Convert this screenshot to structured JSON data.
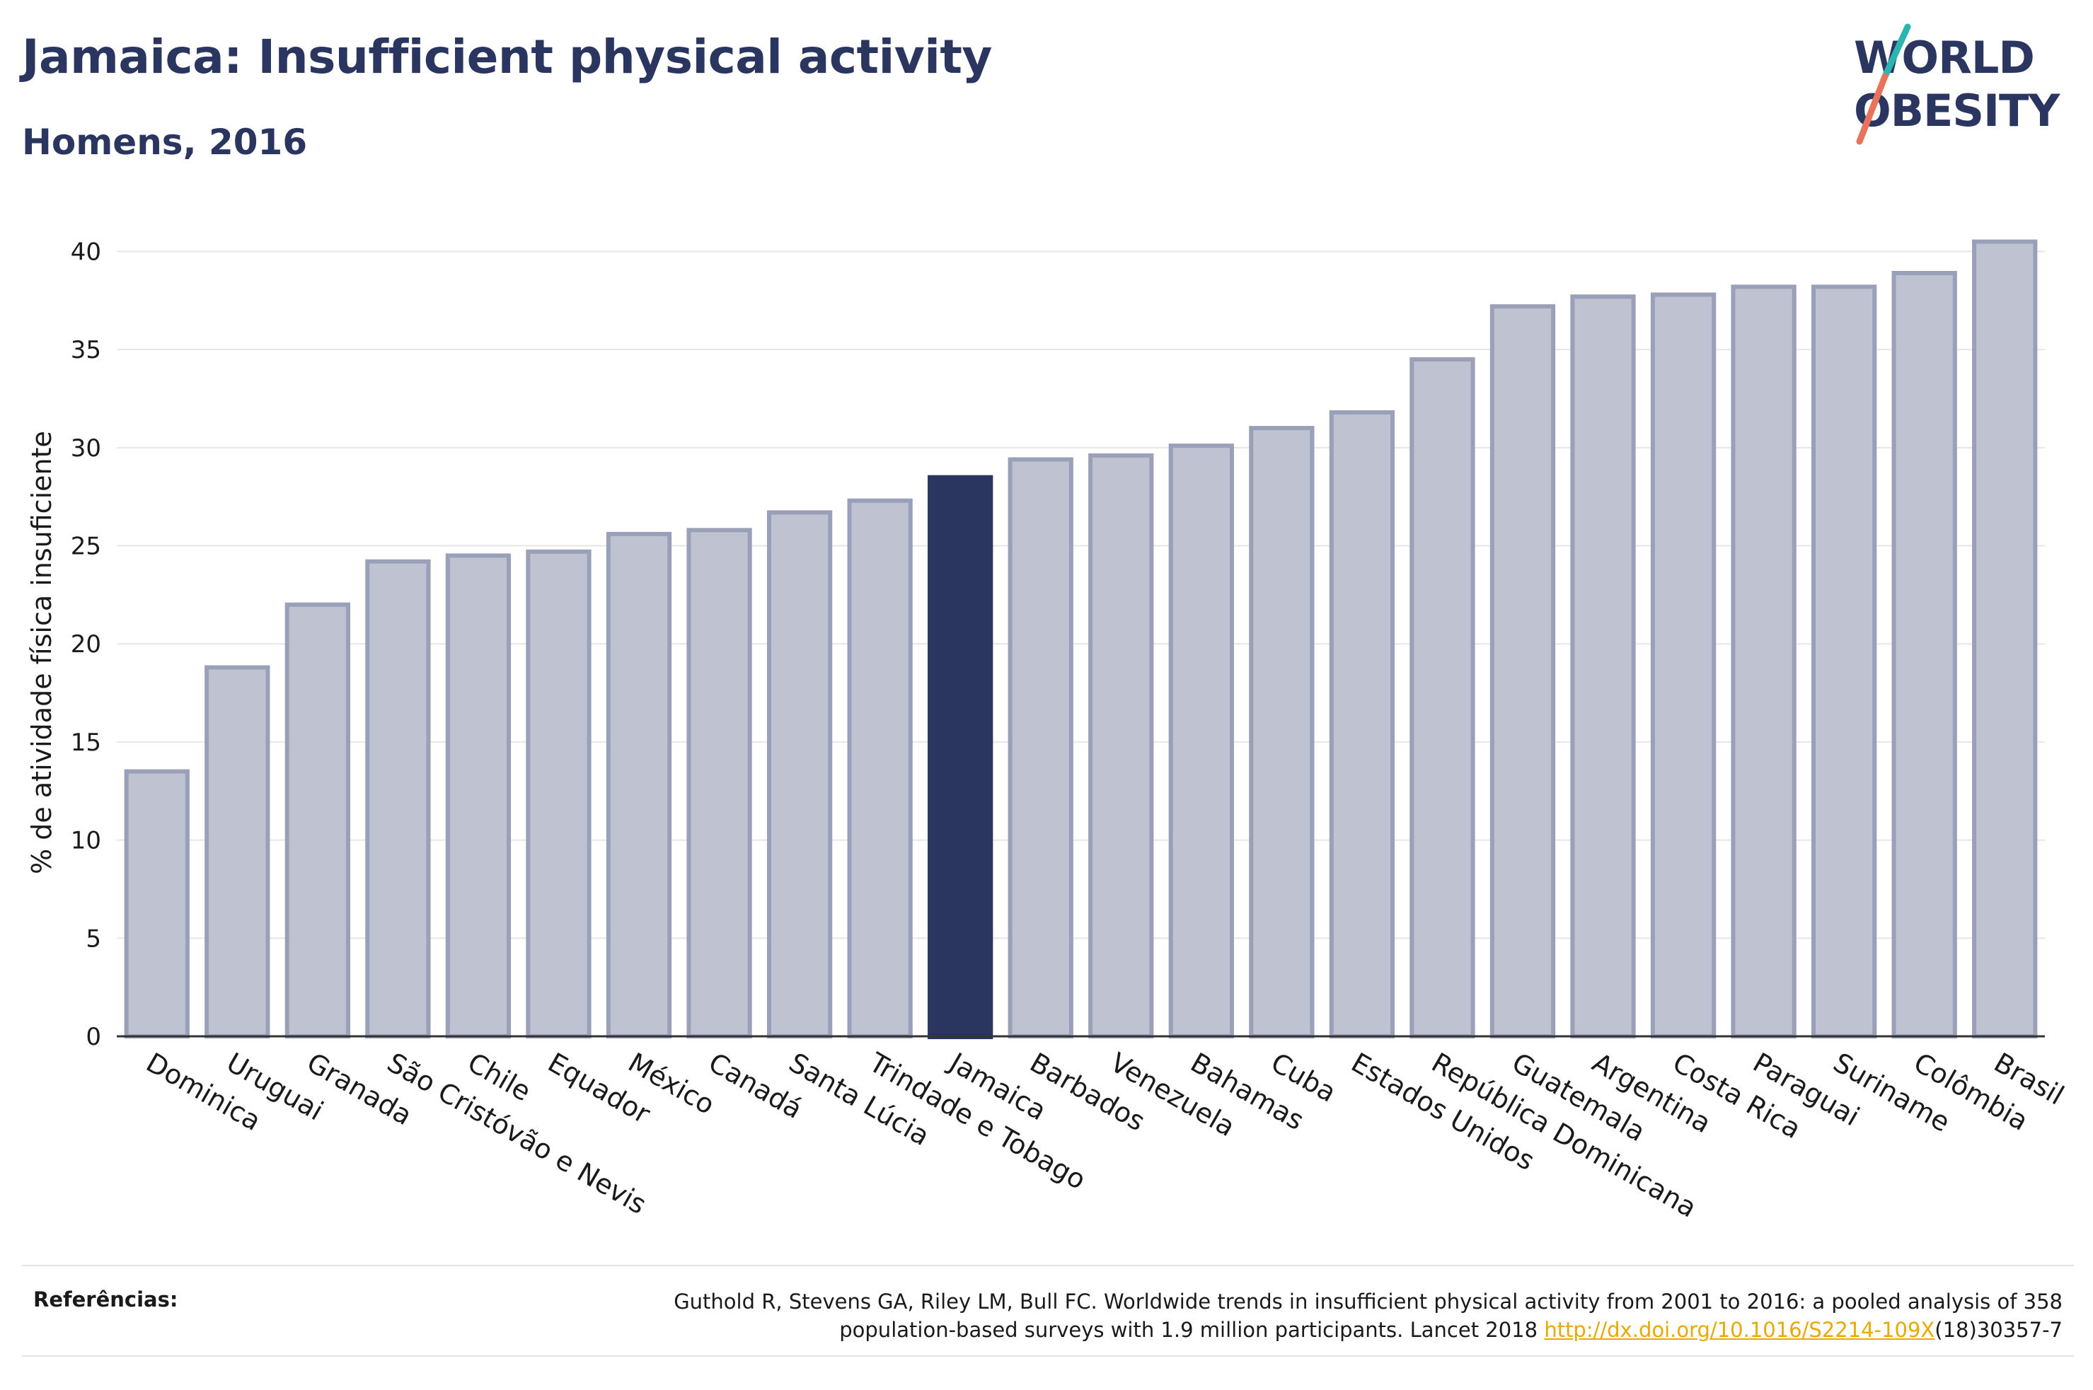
{
  "header": {
    "title": "Jamaica: Insufficient physical activity",
    "subtitle": "Homens, 2016"
  },
  "logo": {
    "line1": "WORLD",
    "line2": "OBESITY",
    "colors": {
      "text": "#2a3560",
      "stroke_teal": "#2bb5b0",
      "stroke_coral": "#e8735a"
    }
  },
  "colors": {
    "bar_default": "#bfc2d0",
    "bar_default_border": "#9aa0b8",
    "bar_highlight": "#2a3560",
    "grid": "#e6e6e6",
    "axis": "#333333"
  },
  "chart_data": {
    "type": "bar",
    "ylabel": "% de atividade física insuficiente",
    "xlabel": "",
    "ylim": [
      0,
      42
    ],
    "yticks": [
      0,
      5,
      10,
      15,
      20,
      25,
      30,
      35,
      40
    ],
    "grid": true,
    "highlight": "Jamaica",
    "categories": [
      "Dominica",
      "Uruguai",
      "Granada",
      "São Cristóvão e Nevis",
      "Chile",
      "Equador",
      "México",
      "Canadá",
      "Santa Lúcia",
      "Trindade e Tobago",
      "Jamaica",
      "Barbados",
      "Venezuela",
      "Bahamas",
      "Cuba",
      "Estados Unidos",
      "República Dominicana",
      "Guatemala",
      "Argentina",
      "Costa Rica",
      "Paraguai",
      "Suriname",
      "Colômbia",
      "Brasil"
    ],
    "values": [
      13.5,
      18.8,
      22.0,
      24.2,
      24.5,
      24.7,
      25.6,
      25.8,
      26.7,
      27.3,
      28.6,
      29.4,
      29.6,
      30.1,
      31.0,
      31.8,
      34.5,
      37.2,
      37.7,
      37.8,
      38.2,
      38.2,
      38.9,
      40.5
    ]
  },
  "footer": {
    "label": "Referências:",
    "citation_line1": "Guthold R, Stevens GA, Riley LM, Bull FC. Worldwide trends in insufficient physical activity from 2001 to 2016: a pooled analysis of 358",
    "citation_line2_pre": "population-based surveys with 1.9 million participants. Lancet 2018 ",
    "citation_link": "http://dx.doi.org/10.1016/S2214-109X",
    "citation_line2_post": "(18)30357-7"
  }
}
